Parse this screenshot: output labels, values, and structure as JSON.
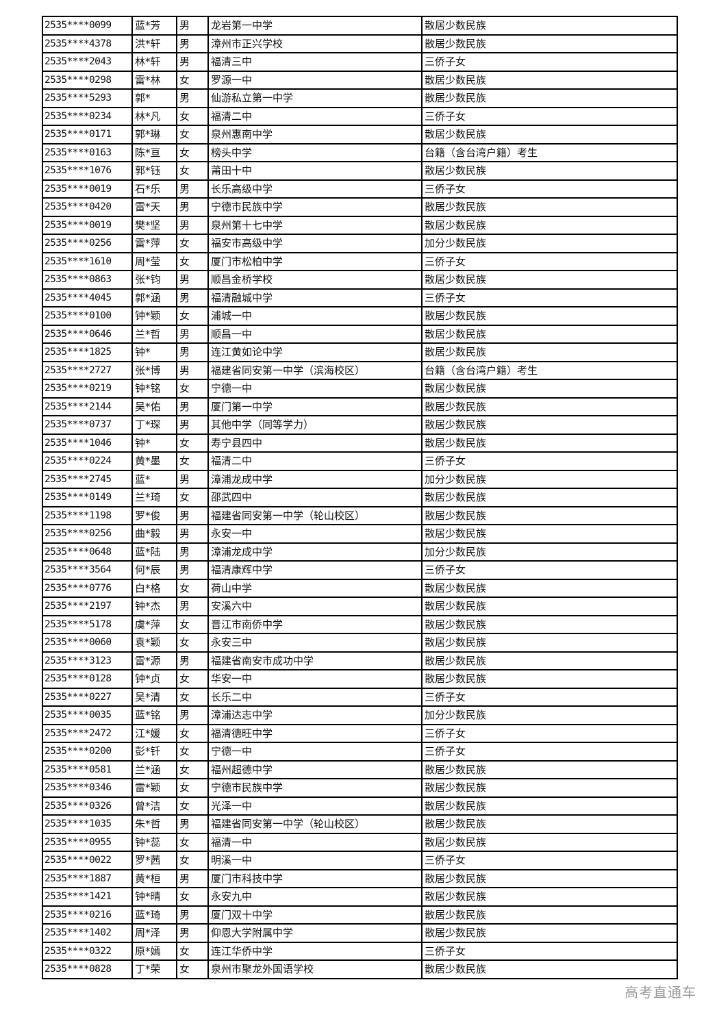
{
  "rows": [
    [
      "2535****0099",
      "蓝*芳",
      "男",
      "龙岩第一中学",
      "散居少数民族"
    ],
    [
      "2535****4378",
      "洪*轩",
      "男",
      "漳州市正兴学校",
      "散居少数民族"
    ],
    [
      "2535****2043",
      "林*轩",
      "男",
      "福清三中",
      "三侨子女"
    ],
    [
      "2535****0298",
      "雷*林",
      "女",
      "罗源一中",
      "散居少数民族"
    ],
    [
      "2535****5293",
      "郭*",
      "男",
      "仙游私立第一中学",
      "散居少数民族"
    ],
    [
      "2535****0234",
      "林*凡",
      "女",
      "福清二中",
      "三侨子女"
    ],
    [
      "2535****0171",
      "郭*琳",
      "女",
      "泉州惠南中学",
      "散居少数民族"
    ],
    [
      "2535****0163",
      "陈*亘",
      "女",
      "榜头中学",
      "台籍（含台湾户籍）考生"
    ],
    [
      "2535****1076",
      "郭*钰",
      "女",
      "莆田十中",
      "散居少数民族"
    ],
    [
      "2535****0019",
      "石*乐",
      "男",
      "长乐高级中学",
      "三侨子女"
    ],
    [
      "2535****0420",
      "雷*天",
      "男",
      "宁德市民族中学",
      "散居少数民族"
    ],
    [
      "2535****0019",
      "樊*坚",
      "男",
      "泉州第十七中学",
      "散居少数民族"
    ],
    [
      "2535****0256",
      "雷*萍",
      "女",
      "福安市高级中学",
      "加分少数民族"
    ],
    [
      "2535****1610",
      "周*莹",
      "女",
      "厦门市松柏中学",
      "三侨子女"
    ],
    [
      "2535****0863",
      "张*钧",
      "男",
      "顺昌金桥学校",
      "散居少数民族"
    ],
    [
      "2535****4045",
      "郭*涵",
      "男",
      "福清融城中学",
      "三侨子女"
    ],
    [
      "2535****0100",
      "钟*颖",
      "女",
      "浦城一中",
      "散居少数民族"
    ],
    [
      "2535****0646",
      "兰*哲",
      "男",
      "顺昌一中",
      "散居少数民族"
    ],
    [
      "2535****1825",
      "钟*",
      "男",
      "连江黄如论中学",
      "散居少数民族"
    ],
    [
      "2535****2727",
      "张*博",
      "男",
      "福建省同安第一中学（滨海校区）",
      "台籍（含台湾户籍）考生"
    ],
    [
      "2535****0219",
      "钟*铭",
      "女",
      "宁德一中",
      "散居少数民族"
    ],
    [
      "2535****2144",
      "吴*佑",
      "男",
      "厦门第一中学",
      "散居少数民族"
    ],
    [
      "2535****0737",
      "丁*琛",
      "男",
      "其他中学（同等学力）",
      "散居少数民族"
    ],
    [
      "2535****1046",
      "钟*",
      "女",
      "寿宁县四中",
      "散居少数民族"
    ],
    [
      "2535****0224",
      "黄*墨",
      "女",
      "福清二中",
      "三侨子女"
    ],
    [
      "2535****2745",
      "蓝*",
      "男",
      "漳浦龙成中学",
      "加分少数民族"
    ],
    [
      "2535****0149",
      "兰*琦",
      "女",
      "邵武四中",
      "散居少数民族"
    ],
    [
      "2535****1198",
      "罗*俊",
      "男",
      "福建省同安第一中学（轮山校区）",
      "散居少数民族"
    ],
    [
      "2535****0256",
      "曲*毅",
      "男",
      "永安一中",
      "散居少数民族"
    ],
    [
      "2535****0648",
      "蓝*陆",
      "男",
      "漳浦龙成中学",
      "加分少数民族"
    ],
    [
      "2535****3564",
      "何*辰",
      "男",
      "福清康辉中学",
      "三侨子女"
    ],
    [
      "2535****0776",
      "白*格",
      "女",
      "荷山中学",
      "散居少数民族"
    ],
    [
      "2535****2197",
      "钟*杰",
      "男",
      "安溪六中",
      "散居少数民族"
    ],
    [
      "2535****5178",
      "虞*萍",
      "女",
      "晋江市南侨中学",
      "散居少数民族"
    ],
    [
      "2535****0060",
      "袁*颖",
      "女",
      "永安三中",
      "散居少数民族"
    ],
    [
      "2535****3123",
      "雷*源",
      "男",
      "福建省南安市成功中学",
      "散居少数民族"
    ],
    [
      "2535****0128",
      "钟*贞",
      "女",
      "华安一中",
      "散居少数民族"
    ],
    [
      "2535****0227",
      "吴*清",
      "女",
      "长乐二中",
      "三侨子女"
    ],
    [
      "2535****0035",
      "蓝*铭",
      "男",
      "漳浦达志中学",
      "加分少数民族"
    ],
    [
      "2535****2472",
      "江*媛",
      "女",
      "福清德旺中学",
      "三侨子女"
    ],
    [
      "2535****0200",
      "彭*钎",
      "女",
      "宁德一中",
      "三侨子女"
    ],
    [
      "2535****0581",
      "兰*涵",
      "女",
      "福州超德中学",
      "散居少数民族"
    ],
    [
      "2535****0346",
      "雷*颖",
      "女",
      "宁德市民族中学",
      "散居少数民族"
    ],
    [
      "2535****0326",
      "曾*洁",
      "女",
      "光泽一中",
      "散居少数民族"
    ],
    [
      "2535****1035",
      "朱*哲",
      "男",
      "福建省同安第一中学（轮山校区）",
      "散居少数民族"
    ],
    [
      "2535****0955",
      "钟*蕊",
      "女",
      "福清一中",
      "散居少数民族"
    ],
    [
      "2535****0022",
      "罗*茜",
      "女",
      "明溪一中",
      "三侨子女"
    ],
    [
      "2535****1887",
      "黄*桓",
      "男",
      "厦门市科技中学",
      "散居少数民族"
    ],
    [
      "2535****1421",
      "钟*晴",
      "女",
      "永安九中",
      "散居少数民族"
    ],
    [
      "2535****0216",
      "蓝*琦",
      "男",
      "厦门双十中学",
      "散居少数民族"
    ],
    [
      "2535****1402",
      "周*泽",
      "男",
      "仰恩大学附属中学",
      "散居少数民族"
    ],
    [
      "2535****0322",
      "原*嫣",
      "女",
      "连江华侨中学",
      "三侨子女"
    ],
    [
      "2535****0828",
      "丁*荣",
      "女",
      "泉州市聚龙外国语学校",
      "散居少数民族"
    ]
  ],
  "watermark": "高考直通车"
}
